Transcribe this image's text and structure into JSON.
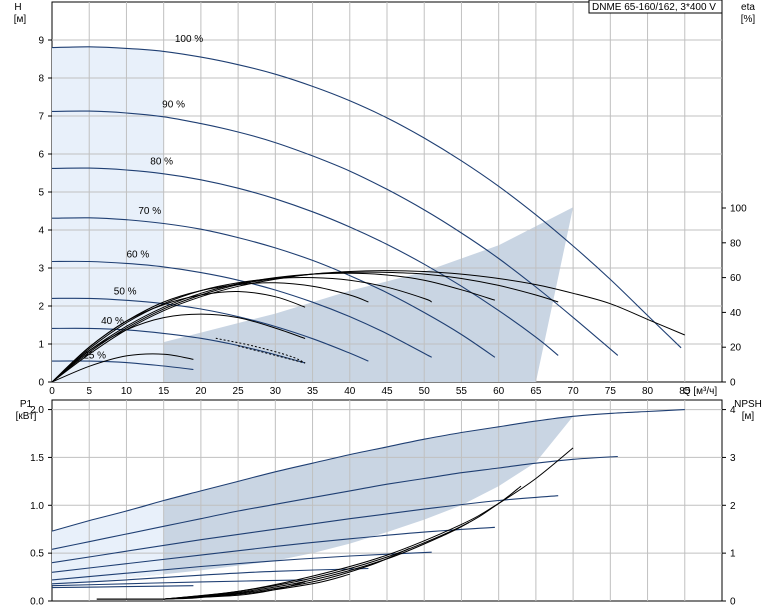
{
  "model_label": "DNME 65-160/162, 3*400 V",
  "colors": {
    "grid": "#c0c0c0",
    "frame": "#000000",
    "head_curve": "#1f3f73",
    "eta_curve": "#000000",
    "operating_area": "#c9d5e3",
    "light_area": "#e8f0fa",
    "system_curve": "#000000"
  },
  "chart_data": [
    {
      "type": "line",
      "name": "qh",
      "x_label": "Q [м³/ч]",
      "y_label": "H",
      "y_unit": "[м]",
      "y2_label": "eta",
      "y2_unit": "[%]",
      "xlim": [
        0,
        90
      ],
      "ylim": [
        0,
        10
      ],
      "y2lim": [
        0,
        100
      ],
      "x_ticks": [
        0,
        5,
        10,
        15,
        20,
        25,
        30,
        35,
        40,
        45,
        50,
        55,
        60,
        65,
        70,
        75,
        80,
        85
      ],
      "y_ticks": [
        0,
        1,
        2,
        3,
        4,
        5,
        6,
        7,
        8,
        9
      ],
      "y2_ticks": [
        0,
        20,
        40,
        60,
        80,
        100
      ],
      "series": [
        {
          "speed": "100 %",
          "x": [
            0,
            5,
            10,
            15,
            20,
            25,
            30,
            35,
            40,
            45,
            50,
            55,
            60,
            65,
            70,
            75,
            80,
            84.5
          ],
          "y": [
            8.8,
            8.82,
            8.78,
            8.7,
            8.55,
            8.35,
            8.1,
            7.78,
            7.4,
            6.95,
            6.42,
            5.82,
            5.15,
            4.4,
            3.58,
            2.7,
            1.75,
            0.9
          ]
        },
        {
          "speed": "90 %",
          "x": [
            0,
            5,
            10,
            15,
            20,
            25,
            30,
            35,
            40,
            45,
            50,
            55,
            60,
            65,
            70,
            76
          ],
          "y": [
            7.12,
            7.13,
            7.08,
            6.98,
            6.8,
            6.58,
            6.3,
            5.95,
            5.55,
            5.07,
            4.53,
            3.92,
            3.25,
            2.5,
            1.7,
            0.7
          ]
        },
        {
          "speed": "80 %",
          "x": [
            0,
            5,
            10,
            15,
            20,
            25,
            30,
            35,
            40,
            45,
            50,
            55,
            60,
            65,
            68
          ],
          "y": [
            5.62,
            5.63,
            5.58,
            5.48,
            5.32,
            5.1,
            4.82,
            4.48,
            4.08,
            3.62,
            3.1,
            2.52,
            1.88,
            1.18,
            0.7
          ]
        },
        {
          "speed": "70 %",
          "x": [
            0,
            5,
            10,
            15,
            20,
            25,
            30,
            35,
            40,
            45,
            50,
            55,
            59.5
          ],
          "y": [
            4.31,
            4.32,
            4.27,
            4.17,
            4.02,
            3.8,
            3.53,
            3.2,
            2.8,
            2.35,
            1.83,
            1.25,
            0.65
          ]
        },
        {
          "speed": "60 %",
          "x": [
            0,
            5,
            10,
            15,
            20,
            25,
            30,
            35,
            40,
            45,
            51
          ],
          "y": [
            3.17,
            3.17,
            3.12,
            3.03,
            2.88,
            2.68,
            2.42,
            2.1,
            1.72,
            1.27,
            0.65
          ]
        },
        {
          "speed": "50 %",
          "x": [
            0,
            5,
            10,
            15,
            20,
            25,
            30,
            35,
            40,
            42.5
          ],
          "y": [
            2.2,
            2.2,
            2.15,
            2.06,
            1.92,
            1.72,
            1.46,
            1.14,
            0.76,
            0.55
          ]
        },
        {
          "speed": "40 %",
          "x": [
            0,
            5,
            10,
            15,
            20,
            25,
            30,
            34
          ],
          "y": [
            1.41,
            1.41,
            1.37,
            1.28,
            1.15,
            0.96,
            0.72,
            0.5
          ]
        },
        {
          "speed": "25 %",
          "x": [
            0,
            5,
            10,
            15,
            19
          ],
          "y": [
            0.55,
            0.55,
            0.51,
            0.42,
            0.33
          ]
        }
      ],
      "eta_series": [
        {
          "speed": "100 %",
          "x": [
            0,
            5,
            10,
            15,
            20,
            25,
            30,
            35,
            40,
            45,
            50,
            55,
            60,
            65,
            70,
            75,
            80,
            85
          ],
          "y": [
            0,
            16,
            30,
            41,
            49,
            55,
            59,
            62,
            63.5,
            64,
            63.5,
            62,
            59.5,
            56,
            51,
            45,
            36,
            27
          ]
        },
        {
          "speed": "90 %",
          "x": [
            0,
            5,
            10,
            15,
            20,
            25,
            30,
            35,
            40,
            45,
            50,
            55,
            60,
            65,
            68
          ],
          "y": [
            0,
            17,
            31,
            42,
            50,
            56,
            59.5,
            62,
            63,
            63,
            62,
            59.5,
            55.5,
            50,
            46
          ]
        },
        {
          "speed": "80 %",
          "x": [
            0,
            5,
            10,
            15,
            20,
            25,
            30,
            35,
            40,
            45,
            50,
            55,
            59.5
          ],
          "y": [
            0,
            18,
            32,
            43,
            51,
            56.5,
            60,
            62,
            62.5,
            61.5,
            58.5,
            53,
            47
          ]
        },
        {
          "speed": "70 %",
          "x": [
            0,
            5,
            10,
            15,
            20,
            25,
            30,
            35,
            40,
            45,
            50,
            51
          ],
          "y": [
            0,
            19,
            34,
            45,
            52.5,
            57,
            59.5,
            60,
            58.5,
            54.5,
            48,
            46
          ]
        },
        {
          "speed": "60 %",
          "x": [
            0,
            5,
            10,
            15,
            20,
            25,
            30,
            35,
            40,
            42.5
          ],
          "y": [
            0,
            20,
            35,
            46,
            52.5,
            56,
            57,
            55,
            50,
            46
          ]
        },
        {
          "speed": "50 %",
          "x": [
            0,
            5,
            10,
            15,
            20,
            25,
            30,
            34
          ],
          "y": [
            0,
            20,
            35,
            44.5,
            50,
            52,
            49,
            43
          ]
        },
        {
          "speed": "40 %",
          "x": [
            0,
            5,
            10,
            15,
            20,
            25,
            30,
            34
          ],
          "y": [
            0,
            18,
            30,
            37,
            39,
            37,
            31,
            25
          ]
        },
        {
          "speed": "25 %",
          "x": [
            0,
            5,
            10,
            15,
            19
          ],
          "y": [
            0,
            9,
            15,
            16,
            13
          ]
        }
      ],
      "system_curves": [
        {
          "x": [
            25,
            30,
            34
          ],
          "y": [
            0.95,
            0.7,
            0.5
          ]
        },
        {
          "x": [
            22,
            27,
            32,
            34
          ],
          "y": [
            1.15,
            0.95,
            0.68,
            0.5
          ]
        }
      ],
      "operating_area": {
        "x": [
          0,
          5,
          10,
          15,
          20,
          25,
          30,
          35,
          40,
          45,
          50,
          55,
          60,
          65,
          70,
          60,
          50,
          40,
          30,
          20,
          15,
          10,
          5,
          0
        ],
        "y": [
          0,
          0,
          0,
          0,
          0,
          0,
          0,
          0,
          0,
          0,
          0,
          0,
          0,
          0,
          4.6,
          3.6,
          2.9,
          2.4,
          1.8,
          1.3,
          1.05,
          0.8,
          0.5,
          0
        ]
      },
      "light_area": {
        "x": [
          0,
          15,
          15,
          15,
          15,
          10,
          5,
          0
        ],
        "y": [
          0,
          0,
          3,
          6,
          8.7,
          8.78,
          8.82,
          8.8
        ]
      },
      "speed_label_positions": [
        {
          "speed": "100 %",
          "x": 16.5,
          "y": 8.95
        },
        {
          "speed": "90 %",
          "x": 14.8,
          "y": 7.22
        },
        {
          "speed": "80 %",
          "x": 13.2,
          "y": 5.72
        },
        {
          "speed": "70 %",
          "x": 11.6,
          "y": 4.42
        },
        {
          "speed": "60 %",
          "x": 10,
          "y": 3.28
        },
        {
          "speed": "50 %",
          "x": 8.3,
          "y": 2.3
        },
        {
          "speed": "40 %",
          "x": 6.6,
          "y": 1.52
        },
        {
          "speed": "25 %",
          "x": 4.2,
          "y": 0.62
        }
      ]
    },
    {
      "type": "line",
      "name": "power",
      "y_label": "P1",
      "y_unit": "[кВт]",
      "y2_label": "NPSH",
      "y2_unit": "[м]",
      "xlim": [
        0,
        90
      ],
      "ylim": [
        0,
        2.1
      ],
      "y2lim": [
        0,
        4.2
      ],
      "y_ticks": [
        "0.0",
        "0.5",
        "1.0",
        "1.5",
        "2.0"
      ],
      "y2_ticks": [
        0,
        1,
        2,
        3,
        4
      ],
      "series": [
        {
          "speed": "100 %",
          "x": [
            0,
            5,
            10,
            15,
            20,
            25,
            30,
            35,
            40,
            45,
            50,
            55,
            60,
            65,
            70,
            75,
            80,
            85
          ],
          "y": [
            0.73,
            0.84,
            0.94,
            1.05,
            1.15,
            1.25,
            1.35,
            1.44,
            1.53,
            1.61,
            1.69,
            1.76,
            1.82,
            1.88,
            1.93,
            1.96,
            1.98,
            2.0
          ]
        },
        {
          "speed": "90 %",
          "x": [
            0,
            5,
            10,
            15,
            20,
            25,
            30,
            35,
            40,
            45,
            50,
            55,
            60,
            65,
            70,
            76
          ],
          "y": [
            0.54,
            0.62,
            0.7,
            0.78,
            0.86,
            0.94,
            1.01,
            1.08,
            1.15,
            1.22,
            1.28,
            1.34,
            1.39,
            1.44,
            1.48,
            1.51
          ]
        },
        {
          "speed": "80 %",
          "x": [
            0,
            10,
            20,
            30,
            40,
            50,
            60,
            68
          ],
          "y": [
            0.4,
            0.52,
            0.64,
            0.75,
            0.86,
            0.96,
            1.05,
            1.1
          ]
        },
        {
          "speed": "70 %",
          "x": [
            0,
            10,
            20,
            30,
            40,
            50,
            59.5
          ],
          "y": [
            0.3,
            0.39,
            0.48,
            0.57,
            0.65,
            0.72,
            0.77
          ]
        },
        {
          "speed": "60 %",
          "x": [
            0,
            10,
            20,
            30,
            40,
            51
          ],
          "y": [
            0.22,
            0.29,
            0.36,
            0.42,
            0.47,
            0.51
          ]
        },
        {
          "speed": "50 %",
          "x": [
            0,
            10,
            20,
            30,
            42.5
          ],
          "y": [
            0.18,
            0.22,
            0.27,
            0.31,
            0.34
          ]
        },
        {
          "speed": "40 %",
          "x": [
            0,
            10,
            20,
            34
          ],
          "y": [
            0.16,
            0.18,
            0.2,
            0.22
          ]
        },
        {
          "speed": "25 %",
          "x": [
            0,
            10,
            19
          ],
          "y": [
            0.14,
            0.15,
            0.16
          ]
        }
      ],
      "npsh_series": [
        {
          "speed": "100 %",
          "x": [
            15,
            25,
            35,
            45,
            55,
            60,
            65,
            70
          ],
          "y": [
            0.02,
            0.1,
            0.26,
            0.48,
            0.8,
            1.02,
            1.28,
            1.6
          ]
        },
        {
          "speed": "90 %",
          "x": [
            15,
            25,
            35,
            45,
            55,
            60,
            63
          ],
          "y": [
            0.02,
            0.1,
            0.24,
            0.46,
            0.78,
            1.02,
            1.2
          ]
        },
        {
          "speed": "80 %",
          "x": [
            15,
            25,
            35,
            45,
            53,
            56
          ],
          "y": [
            0.02,
            0.09,
            0.22,
            0.44,
            0.7,
            0.82
          ]
        },
        {
          "speed": "70 %",
          "x": [
            15,
            25,
            35,
            43,
            48
          ],
          "y": [
            0.02,
            0.08,
            0.2,
            0.38,
            0.55
          ]
        },
        {
          "speed": "60 %",
          "x": [
            15,
            25,
            35,
            40
          ],
          "y": [
            0.02,
            0.07,
            0.18,
            0.28
          ]
        },
        {
          "speed": "50 %",
          "x": [
            15,
            25,
            30,
            34
          ],
          "y": [
            0.02,
            0.06,
            0.12,
            0.2
          ]
        },
        {
          "speed": "40 %",
          "x": [
            15,
            22,
            27
          ],
          "y": [
            0.02,
            0.05,
            0.1
          ]
        },
        {
          "speed": "25 %",
          "x": [
            15,
            19,
            21
          ],
          "y": [
            0.02,
            0.03,
            0.05
          ]
        }
      ],
      "flat_line": {
        "x": [
          6,
          15
        ],
        "y": [
          0.02,
          0.02
        ]
      },
      "operating_area": {
        "x": [
          0,
          5,
          10,
          15,
          20,
          25,
          30,
          35,
          40,
          45,
          50,
          55,
          60,
          65,
          70,
          60,
          50,
          40,
          30,
          20,
          15,
          10,
          5,
          0
        ],
        "y": [
          0.17,
          0.2,
          0.24,
          0.28,
          0.32,
          0.37,
          0.42,
          0.5,
          0.6,
          0.72,
          0.85,
          1.0,
          1.2,
          1.45,
          1.93,
          1.82,
          1.69,
          1.53,
          1.35,
          1.15,
          1.05,
          0.94,
          0.84,
          0.73
        ]
      },
      "light_area": {
        "x": [
          0,
          5,
          10,
          15,
          15,
          10,
          5,
          0
        ],
        "y": [
          0.17,
          0.2,
          0.24,
          0.28,
          1.05,
          0.94,
          0.84,
          0.73
        ]
      }
    }
  ]
}
